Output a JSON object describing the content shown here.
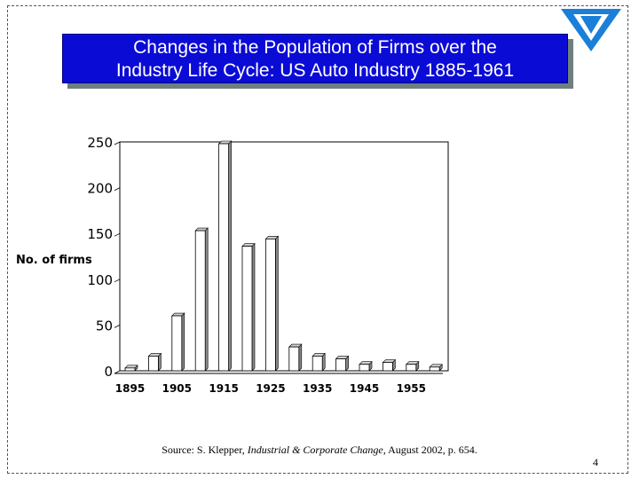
{
  "slide": {
    "title_line1": "Changes in the Population of Firms over the",
    "title_line2": "Industry Life Cycle: US Auto Industry 1885-1961",
    "source_prefix": "Source: S. Klepper, ",
    "source_journal": "Industrial & Corporate Change,",
    "source_suffix": " August 2002, p. 654.",
    "page_number": "4"
  },
  "colors": {
    "title_bg": "#0b0bd6",
    "title_text": "#ffffff",
    "logo": "#1a7fd8",
    "bar_front": "#ffffff",
    "bar_side": "#8a8a8a",
    "bar_top": "#d0d0d0"
  },
  "chart_data": {
    "type": "bar",
    "title": "Changes in the Population of Firms over the Industry Life Cycle: US Auto Industry 1885-1961",
    "xlabel": "",
    "ylabel": "No. of firms",
    "ylim": [
      0,
      250
    ],
    "yticks": [
      0,
      50,
      100,
      150,
      200,
      250
    ],
    "grid": true,
    "categories": [
      "1895",
      "1900",
      "1905",
      "1910",
      "1915",
      "1920",
      "1925",
      "1930",
      "1935",
      "1940",
      "1945",
      "1950",
      "1955",
      "1960"
    ],
    "tick_labels": [
      "1895",
      "1905",
      "1915",
      "1925",
      "1935",
      "1945",
      "1955"
    ],
    "values": [
      5,
      18,
      62,
      155,
      250,
      138,
      146,
      28,
      18,
      15,
      9,
      11,
      9,
      6
    ]
  }
}
